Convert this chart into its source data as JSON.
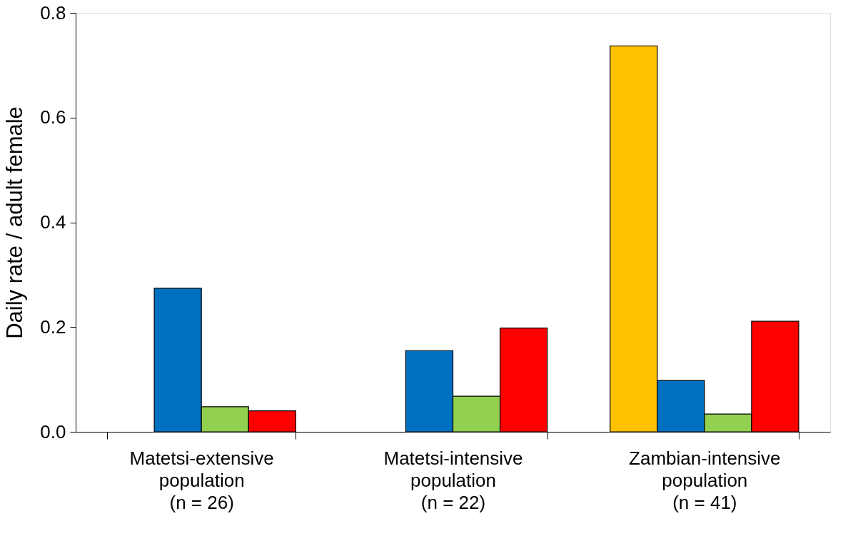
{
  "chart_data": {
    "type": "bar",
    "ylabel": "Daily rate / adult female",
    "categories": [
      "Matetsi-extensive\npopulation\n(n = 26)",
      "Matetsi-intensive\npopulation\n(n =  22)",
      "Zambian-intensive\npopulation\n(n =  41)"
    ],
    "series": [
      {
        "color": "#ffc000",
        "values": [
          null,
          null,
          0.737
        ]
      },
      {
        "color": "#0070c0",
        "values": [
          0.274,
          0.155,
          0.098
        ]
      },
      {
        "color": "#92d050",
        "values": [
          0.048,
          0.068,
          0.034
        ]
      },
      {
        "color": "#ff0000",
        "values": [
          0.04,
          0.198,
          0.211
        ]
      }
    ],
    "ylim": [
      0,
      0.8
    ],
    "yticks": [
      {
        "value": 0,
        "label": "0.0"
      },
      {
        "value": 0.2,
        "label": "0.2"
      },
      {
        "value": 0.4,
        "label": "0.4"
      },
      {
        "value": 0.6,
        "label": "0.6"
      },
      {
        "value": 0.8,
        "label": "0.8"
      }
    ],
    "grid": false,
    "legend": false
  }
}
